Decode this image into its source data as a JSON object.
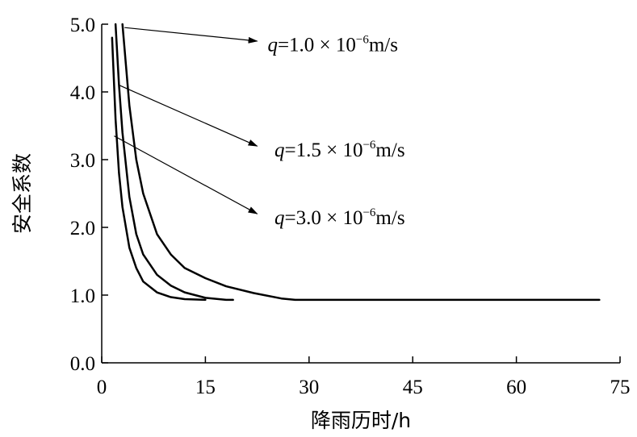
{
  "chart_data": {
    "type": "line",
    "title": "",
    "xlabel": "降雨历时/h",
    "ylabel": "安全系数",
    "xlim": [
      0,
      75
    ],
    "ylim": [
      0,
      5
    ],
    "x_ticks": [
      0,
      15,
      30,
      45,
      60,
      75
    ],
    "x_tick_labels": [
      "0",
      "15",
      "30",
      "45",
      "60",
      "75"
    ],
    "y_ticks": [
      0,
      1,
      2,
      3,
      4,
      5
    ],
    "y_tick_labels": [
      "0.0",
      "1.0",
      "2.0",
      "3.0",
      "4.0",
      "5.0"
    ],
    "grid": false,
    "legend": "none",
    "series": [
      {
        "name": "q=1.0×10⁻⁶m/s",
        "label": {
          "var": "q",
          "eq": "=1.0 × 10",
          "sup": "−6",
          "unit": "m/s"
        },
        "x": [
          3,
          4,
          5,
          6,
          8,
          10,
          12,
          15,
          18,
          22,
          26,
          28,
          40,
          50,
          60,
          72
        ],
        "y": [
          5.0,
          3.8,
          3.0,
          2.5,
          1.9,
          1.6,
          1.4,
          1.25,
          1.13,
          1.03,
          0.95,
          0.93,
          0.93,
          0.93,
          0.93,
          0.93
        ]
      },
      {
        "name": "q=1.5×10⁻⁶m/s",
        "label": {
          "var": "q",
          "eq": "=1.5 × 10",
          "sup": "−6",
          "unit": "m/s"
        },
        "x": [
          2,
          2.5,
          3,
          4,
          5,
          6,
          8,
          10,
          12,
          15,
          18,
          19
        ],
        "y": [
          5.0,
          4.1,
          3.4,
          2.45,
          1.9,
          1.6,
          1.3,
          1.14,
          1.04,
          0.96,
          0.93,
          0.93
        ]
      },
      {
        "name": "q=3.0×10⁻⁶m/s",
        "label": {
          "var": "q",
          "eq": "=3.0 × 10",
          "sup": "−6",
          "unit": "m/s"
        },
        "x": [
          1.5,
          2,
          2.5,
          3,
          4,
          5,
          6,
          8,
          10,
          12,
          15
        ],
        "y": [
          4.8,
          3.6,
          2.8,
          2.3,
          1.7,
          1.4,
          1.2,
          1.04,
          0.97,
          0.94,
          0.93
        ]
      }
    ],
    "annotations": [
      {
        "series": 0,
        "arrow_from": [
          3.3,
          4.95
        ],
        "arrow_to": [
          22.5,
          4.75
        ],
        "text_at": [
          24,
          4.6
        ]
      },
      {
        "series": 1,
        "arrow_from": [
          2.5,
          4.1
        ],
        "arrow_to": [
          22.5,
          3.2
        ],
        "text_at": [
          25,
          3.05
        ]
      },
      {
        "series": 2,
        "arrow_from": [
          1.8,
          3.35
        ],
        "arrow_to": [
          22.5,
          2.2
        ],
        "text_at": [
          25,
          2.05
        ]
      }
    ]
  }
}
